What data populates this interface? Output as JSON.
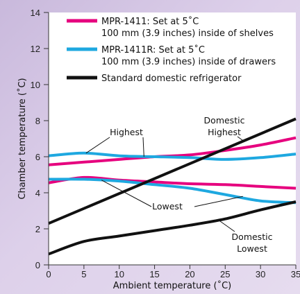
{
  "chart_data": {
    "type": "line",
    "xlabel": "Ambient temperature (˚C)",
    "ylabel": "Chamber temperature (˚C)",
    "xlim": [
      0,
      35
    ],
    "ylim": [
      0,
      14
    ],
    "x_ticks": [
      "0",
      "5",
      "10",
      "15",
      "20",
      "25",
      "30",
      "35"
    ],
    "y_ticks": [
      "0",
      "2",
      "4",
      "6",
      "8",
      "10",
      "12",
      "14"
    ],
    "grid": false,
    "legend_position": "top-left",
    "colors": {
      "mpr1411": "#e6007e",
      "mpr1411r": "#1ea8e0",
      "domestic": "#111111"
    },
    "legend": [
      {
        "line1": "MPR-1411: Set at 5˚C",
        "line2": "100 mm (3.9 inches) inside of shelves"
      },
      {
        "line1": "MPR-1411R: Set at 5˚C",
        "line2": "100 mm (3.9 inches) inside of drawers"
      },
      {
        "line1": "Standard domestic refrigerator",
        "line2": ""
      }
    ],
    "series": [
      {
        "id": "mpr1411-high",
        "color": "#e6007e",
        "x": [
          0,
          5,
          10,
          15,
          20,
          25,
          30,
          35
        ],
        "y": [
          5.55,
          5.7,
          5.85,
          6.0,
          6.1,
          6.35,
          6.65,
          7.05
        ]
      },
      {
        "id": "mpr1411-low",
        "color": "#e6007e",
        "x": [
          0,
          5,
          10,
          15,
          20,
          25,
          30,
          35
        ],
        "y": [
          4.55,
          4.85,
          4.7,
          4.6,
          4.5,
          4.45,
          4.35,
          4.25
        ]
      },
      {
        "id": "mpr1411r-high",
        "color": "#1ea8e0",
        "x": [
          0,
          5,
          10,
          15,
          20,
          25,
          30,
          35
        ],
        "y": [
          6.05,
          6.2,
          6.05,
          6.0,
          5.95,
          5.85,
          5.95,
          6.15
        ]
      },
      {
        "id": "mpr1411r-low",
        "color": "#1ea8e0",
        "x": [
          0,
          5,
          10,
          15,
          20,
          25,
          30,
          35
        ],
        "y": [
          4.75,
          4.75,
          4.65,
          4.45,
          4.25,
          3.9,
          3.55,
          3.45
        ]
      },
      {
        "id": "domestic-high",
        "color": "#111111",
        "x": [
          0,
          35
        ],
        "y": [
          2.3,
          8.1
        ]
      },
      {
        "id": "domestic-low",
        "color": "#111111",
        "x": [
          0,
          5,
          10,
          15,
          20,
          25,
          30,
          35
        ],
        "y": [
          0.6,
          1.3,
          1.6,
          1.9,
          2.2,
          2.55,
          3.05,
          3.5
        ]
      }
    ],
    "annotations": [
      {
        "id": "highest",
        "lines": [
          "Highest"
        ]
      },
      {
        "id": "lowest",
        "lines": [
          "Lowest"
        ]
      },
      {
        "id": "domestic-highest",
        "lines": [
          "Domestic",
          "Highest"
        ]
      },
      {
        "id": "domestic-lowest",
        "lines": [
          "Domestic",
          "Lowest"
        ]
      }
    ]
  }
}
